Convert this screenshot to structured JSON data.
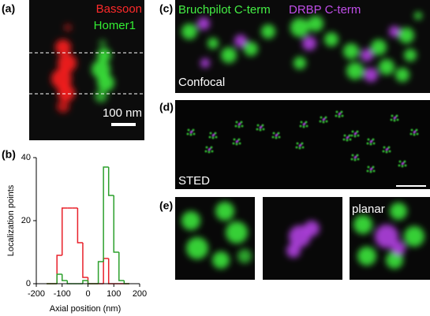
{
  "panel_labels": [
    "(a)",
    "(b)",
    "(c)",
    "(d)",
    "(e)"
  ],
  "panel_a": {
    "labels": [
      "Bassoon",
      "Homer1"
    ],
    "scale_bar": "100 nm"
  },
  "panel_c": {
    "labels": [
      "Bruchpilot C-term",
      "DRBP C-term"
    ],
    "caption": "Confocal"
  },
  "panel_d": {
    "caption": "STED"
  },
  "panel_e": {
    "caption": "planar"
  },
  "chart_data": {
    "type": "histogram",
    "x_label": "Axial position (nm)",
    "y_label": "Localization points",
    "bins": [
      -160,
      -140,
      -120,
      -100,
      -80,
      -60,
      -40,
      -20,
      0,
      20,
      40,
      60,
      80,
      100,
      120,
      140,
      160
    ],
    "series": [
      {
        "name": "Bassoon",
        "color": "#e8202a",
        "values": [
          0,
          0,
          9,
          24,
          24,
          24,
          13,
          2,
          0,
          0,
          0,
          8,
          0,
          0,
          0,
          0
        ]
      },
      {
        "name": "Homer1",
        "color": "#2ca02c",
        "values": [
          0,
          0,
          3,
          1,
          0,
          0,
          0,
          1,
          0,
          0,
          7,
          37,
          28,
          10,
          1,
          0
        ]
      }
    ],
    "xlim": [
      -200,
      200
    ],
    "ylim": [
      0,
      40
    ],
    "xticks": [
      -200,
      -100,
      0,
      100,
      200
    ],
    "yticks": [
      0,
      20,
      40
    ]
  }
}
